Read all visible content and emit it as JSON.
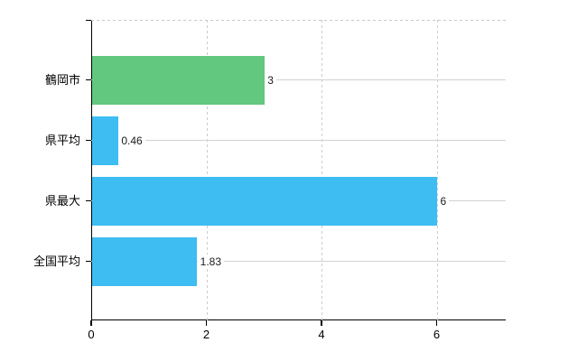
{
  "chart_data": {
    "type": "bar",
    "orientation": "horizontal",
    "title": "",
    "xlabel": "",
    "ylabel": "",
    "categories": [
      "鶴岡市",
      "県平均",
      "県最大",
      "全国平均"
    ],
    "values": [
      3,
      0.46,
      6,
      1.83
    ],
    "value_labels": [
      "3",
      "0.46",
      "6",
      "1.83"
    ],
    "bar_colors": [
      "#62C87F",
      "#3DBDF1",
      "#3DBDF1",
      "#3DBDF1"
    ],
    "x_ticks": [
      0,
      2,
      4,
      6
    ],
    "x_tick_labels": [
      "0",
      "2",
      "4",
      "6"
    ],
    "xlim": [
      0,
      7.2
    ],
    "grid": true,
    "legend": false
  },
  "colors": {
    "axis": "#000000",
    "horizontal_gridline": "#cfd4cf",
    "vertical_gridline": "#cccccc",
    "background": "#ffffff",
    "text": "#000000"
  }
}
